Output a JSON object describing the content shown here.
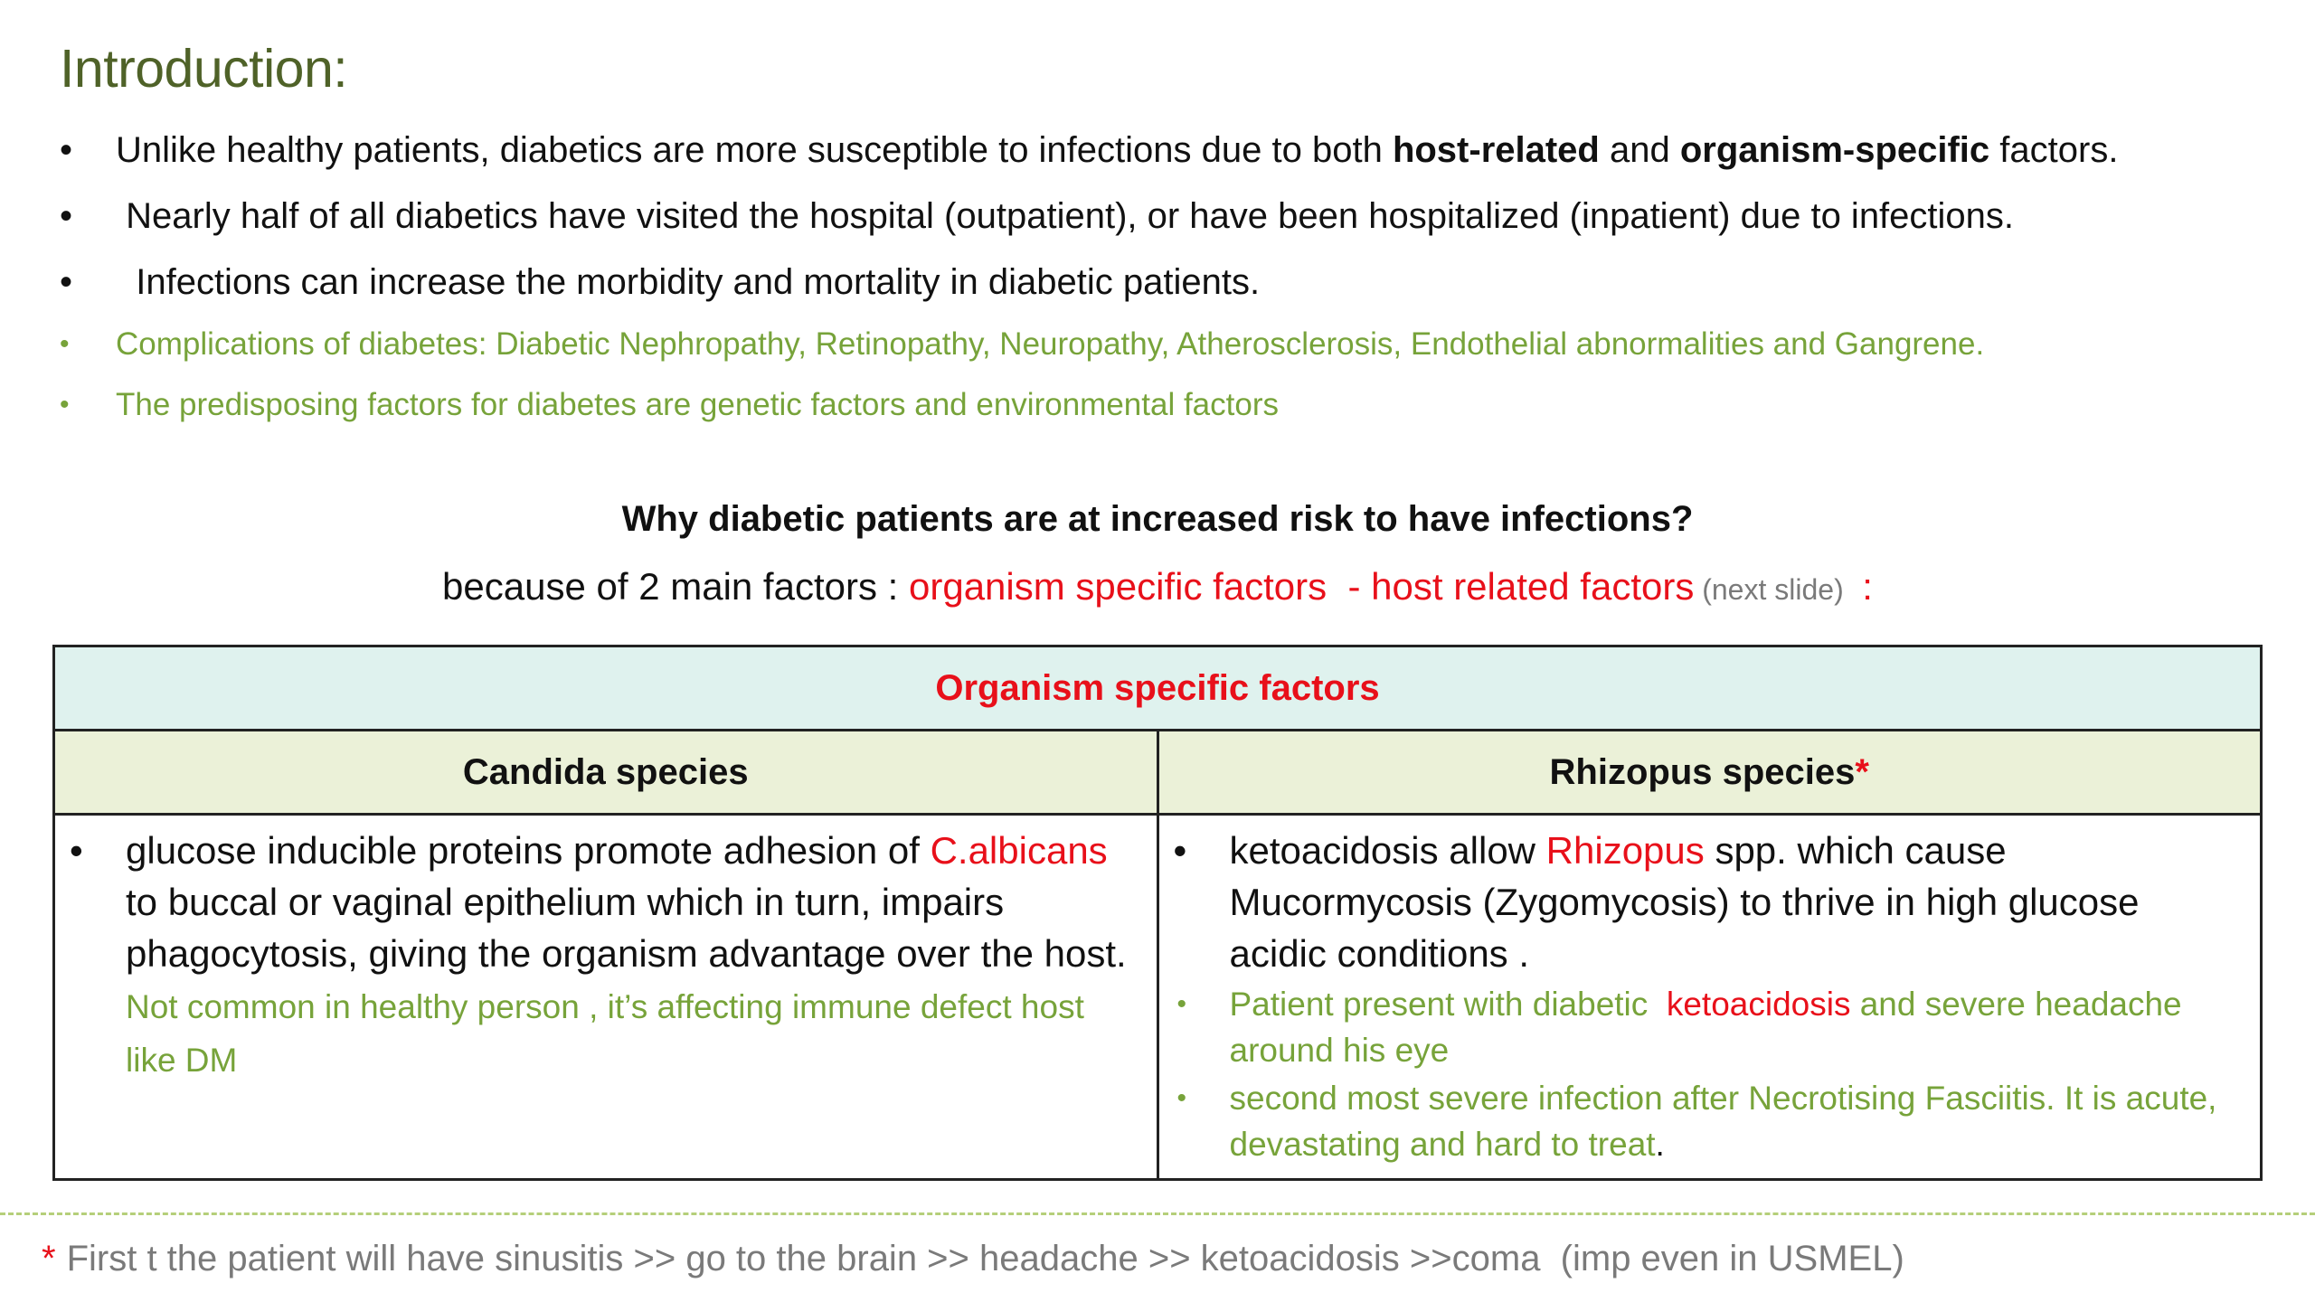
{
  "title": "Introduction:",
  "bullets": [
    {
      "pre": "Unlike healthy patients, diabetics are more susceptible to infections due to both ",
      "b1": "host-related",
      "mid": " and ",
      "b2": "organism-specific",
      "post": " factors."
    },
    {
      "text": " Nearly half of all diabetics have visited the hospital (outpatient), or have been hospitalized (inpatient) due to infections."
    },
    {
      "text": "  Infections can increase the morbidity and mortality in diabetic patients."
    },
    {
      "text": "Complications of diabetes: Diabetic Nephropathy, Retinopathy, Neuropathy, Atherosclerosis, Endothelial abnormalities and Gangrene."
    },
    {
      "text": "The predisposing factors for diabetes are genetic factors and environmental factors"
    }
  ],
  "bullet_symbol": "•",
  "question": "Why diabetic patients are at increased risk to have infections?",
  "because": {
    "lead": "because of 2 main factors : ",
    "factors": "organism specific factors  - host related factors",
    "note": " (next slide) ",
    "colon": " :"
  },
  "table": {
    "header": "Organism specific factors",
    "col1_title": "Candida species",
    "col2_title": "Rhizopus species",
    "col2_star": "*",
    "candida": {
      "t1": "glucose inducible proteins promote adhesion of ",
      "red": "C.albicans",
      "t2": " to buccal or vaginal epithelium which in turn, impairs phagocytosis, giving the organism advantage over the host. ",
      "green": "Not common in healthy person , it’s affecting immune defect host like DM"
    },
    "rhizopus": {
      "t1": "ketoacidosis allow ",
      "red": "Rhizopus",
      "t2": " spp. which cause Mucormycosis (Zygomycosis) to thrive in high glucose acidic conditions .",
      "g1a": "Patient present with diabetic  ",
      "g1red": "ketoacidosis",
      "g1b": " and severe headache around his eye",
      "g2": "second most severe infection after Necrotising Fasciitis. It is acute, devastating and hard to treat",
      "g2end": "."
    }
  },
  "footnote": {
    "star": "*",
    "text": "First t the patient will have sinusitis >> go to the brain >> headache >> ketoacidosis >>coma  (imp even in USMEL)"
  },
  "colors": {
    "title": "#4f6228",
    "green_text": "#77a33a",
    "red": "#e8101a",
    "header_bg": "#dff2ee",
    "subheader_bg": "#ebf1d8",
    "grey": "#7a7a7a"
  }
}
